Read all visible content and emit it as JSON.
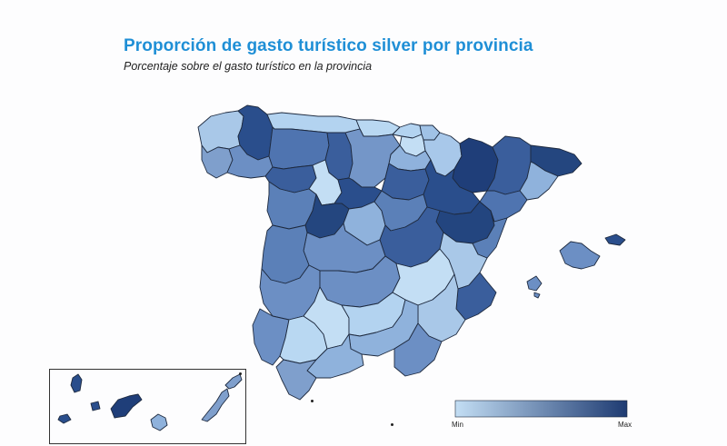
{
  "title": "Proporción de gasto turístico silver por provincia",
  "subtitle": "Porcentaje sobre el gasto turístico en la provincia",
  "legend": {
    "min_label": "Min",
    "max_label": "Max",
    "color_min": "#c3def4",
    "color_max": "#1e3b72"
  },
  "colors": {
    "title": "#1f8fd6",
    "border": "#1e2a3f",
    "background": "#fdfdfe"
  }
}
